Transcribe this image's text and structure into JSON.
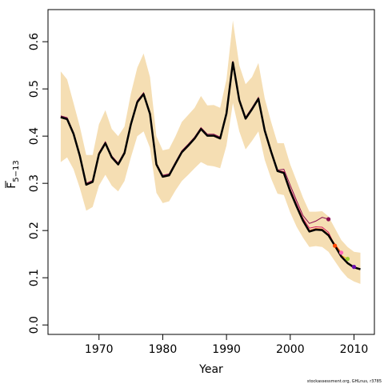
{
  "chart_data": {
    "type": "line",
    "title": "",
    "xlabel": "Year",
    "ylabel": "F",
    "ylabel_subscript": "5−13",
    "credit": "stockassessment.org, GHLnus, r3785",
    "xlim": [
      1962.0,
      2013.2
    ],
    "ylim": [
      -0.02,
      0.668
    ],
    "x_ticks": [
      1970,
      1980,
      1990,
      2000,
      2010
    ],
    "y_ticks": [
      0.0,
      0.1,
      0.2,
      0.3,
      0.4,
      0.5,
      0.6
    ],
    "y_tick_labels": [
      "0.0",
      "0.1",
      "0.2",
      "0.3",
      "0.4",
      "0.5",
      "0.6"
    ],
    "grid": false,
    "colors": {
      "band": "#f5deb3",
      "main": "#000000",
      "retro": [
        "#8b0a50",
        "#d81b60",
        "#ff4500",
        "#ffa500",
        "#ff69b4",
        "#9acd32",
        "#6a0dad",
        "#c71585"
      ]
    },
    "years": [
      1964,
      1965,
      1966,
      1967,
      1968,
      1969,
      1970,
      1971,
      1972,
      1973,
      1974,
      1975,
      1976,
      1977,
      1978,
      1979,
      1980,
      1981,
      1982,
      1983,
      1984,
      1985,
      1986,
      1987,
      1988,
      1989,
      1990,
      1991,
      1992,
      1993,
      1994,
      1995,
      1996,
      1997,
      1998,
      1999,
      2000,
      2001,
      2002,
      2003,
      2004,
      2005,
      2006,
      2007,
      2008,
      2009,
      2010,
      2011
    ],
    "estimate": [
      0.44,
      0.436,
      0.405,
      0.358,
      0.297,
      0.303,
      0.362,
      0.385,
      0.355,
      0.34,
      0.364,
      0.425,
      0.472,
      0.489,
      0.447,
      0.34,
      0.314,
      0.317,
      0.342,
      0.366,
      0.38,
      0.395,
      0.415,
      0.401,
      0.401,
      0.395,
      0.448,
      0.556,
      0.476,
      0.437,
      0.457,
      0.479,
      0.412,
      0.367,
      0.326,
      0.322,
      0.283,
      0.251,
      0.221,
      0.198,
      0.202,
      0.201,
      0.19,
      0.168,
      0.145,
      0.131,
      0.122,
      0.118
    ],
    "upper": [
      0.537,
      0.52,
      0.47,
      0.42,
      0.36,
      0.36,
      0.425,
      0.455,
      0.415,
      0.4,
      0.42,
      0.49,
      0.545,
      0.575,
      0.525,
      0.4,
      0.37,
      0.373,
      0.4,
      0.43,
      0.445,
      0.46,
      0.485,
      0.465,
      0.466,
      0.46,
      0.52,
      0.645,
      0.55,
      0.51,
      0.525,
      0.555,
      0.48,
      0.43,
      0.385,
      0.385,
      0.34,
      0.305,
      0.27,
      0.24,
      0.24,
      0.241,
      0.23,
      0.205,
      0.18,
      0.165,
      0.155,
      0.153
    ],
    "lower": [
      0.345,
      0.355,
      0.33,
      0.29,
      0.242,
      0.25,
      0.295,
      0.318,
      0.295,
      0.283,
      0.305,
      0.355,
      0.4,
      0.41,
      0.375,
      0.28,
      0.258,
      0.262,
      0.285,
      0.305,
      0.318,
      0.332,
      0.345,
      0.338,
      0.336,
      0.332,
      0.38,
      0.47,
      0.41,
      0.372,
      0.39,
      0.41,
      0.35,
      0.31,
      0.278,
      0.275,
      0.238,
      0.208,
      0.185,
      0.165,
      0.167,
      0.165,
      0.155,
      0.135,
      0.115,
      0.1,
      0.092,
      0.087
    ],
    "retro_series": [
      {
        "end_year": 2006,
        "end_value": 0.224,
        "values": [
          0.443,
          0.439,
          0.408,
          0.361,
          0.3,
          0.306,
          0.365,
          0.388,
          0.358,
          0.343,
          0.367,
          0.428,
          0.475,
          0.492,
          0.45,
          0.343,
          0.317,
          0.32,
          0.345,
          0.369,
          0.383,
          0.398,
          0.418,
          0.404,
          0.404,
          0.398,
          0.451,
          0.559,
          0.479,
          0.44,
          0.46,
          0.482,
          0.414,
          0.369,
          0.328,
          0.33,
          0.296,
          0.263,
          0.232,
          0.215,
          0.22,
          0.228,
          0.224
        ]
      },
      {
        "end_year": 2007,
        "end_value": 0.168,
        "values": [
          0.441,
          0.437,
          0.406,
          0.359,
          0.298,
          0.304,
          0.363,
          0.386,
          0.356,
          0.341,
          0.365,
          0.426,
          0.473,
          0.49,
          0.448,
          0.341,
          0.315,
          0.318,
          0.343,
          0.367,
          0.381,
          0.396,
          0.416,
          0.402,
          0.402,
          0.396,
          0.449,
          0.557,
          0.477,
          0.438,
          0.458,
          0.48,
          0.413,
          0.368,
          0.327,
          0.325,
          0.288,
          0.256,
          0.226,
          0.205,
          0.208,
          0.207,
          0.196,
          0.168
        ]
      },
      {
        "end_year": 2008,
        "end_value": 0.153,
        "values": [
          0.44,
          0.436,
          0.405,
          0.358,
          0.297,
          0.303,
          0.362,
          0.385,
          0.355,
          0.34,
          0.364,
          0.425,
          0.472,
          0.489,
          0.447,
          0.34,
          0.314,
          0.317,
          0.342,
          0.366,
          0.38,
          0.395,
          0.415,
          0.401,
          0.401,
          0.395,
          0.448,
          0.556,
          0.476,
          0.437,
          0.457,
          0.479,
          0.412,
          0.367,
          0.326,
          0.323,
          0.285,
          0.253,
          0.223,
          0.2,
          0.204,
          0.203,
          0.192,
          0.171,
          0.153
        ]
      },
      {
        "end_year": 2009,
        "end_value": 0.14,
        "values": [
          0.44,
          0.436,
          0.405,
          0.358,
          0.297,
          0.303,
          0.362,
          0.385,
          0.355,
          0.34,
          0.364,
          0.425,
          0.472,
          0.489,
          0.447,
          0.34,
          0.314,
          0.317,
          0.342,
          0.366,
          0.38,
          0.395,
          0.415,
          0.401,
          0.401,
          0.395,
          0.448,
          0.556,
          0.476,
          0.437,
          0.457,
          0.479,
          0.412,
          0.367,
          0.326,
          0.322,
          0.284,
          0.252,
          0.222,
          0.199,
          0.203,
          0.202,
          0.191,
          0.169,
          0.147,
          0.14
        ]
      },
      {
        "end_year": 2010,
        "end_value": 0.123,
        "values": [
          0.44,
          0.436,
          0.405,
          0.358,
          0.297,
          0.303,
          0.362,
          0.385,
          0.355,
          0.34,
          0.364,
          0.425,
          0.472,
          0.489,
          0.447,
          0.34,
          0.314,
          0.317,
          0.342,
          0.366,
          0.38,
          0.395,
          0.415,
          0.401,
          0.401,
          0.395,
          0.448,
          0.556,
          0.476,
          0.437,
          0.457,
          0.479,
          0.412,
          0.367,
          0.326,
          0.322,
          0.283,
          0.251,
          0.221,
          0.198,
          0.202,
          0.201,
          0.19,
          0.168,
          0.145,
          0.132,
          0.123
        ]
      }
    ]
  }
}
